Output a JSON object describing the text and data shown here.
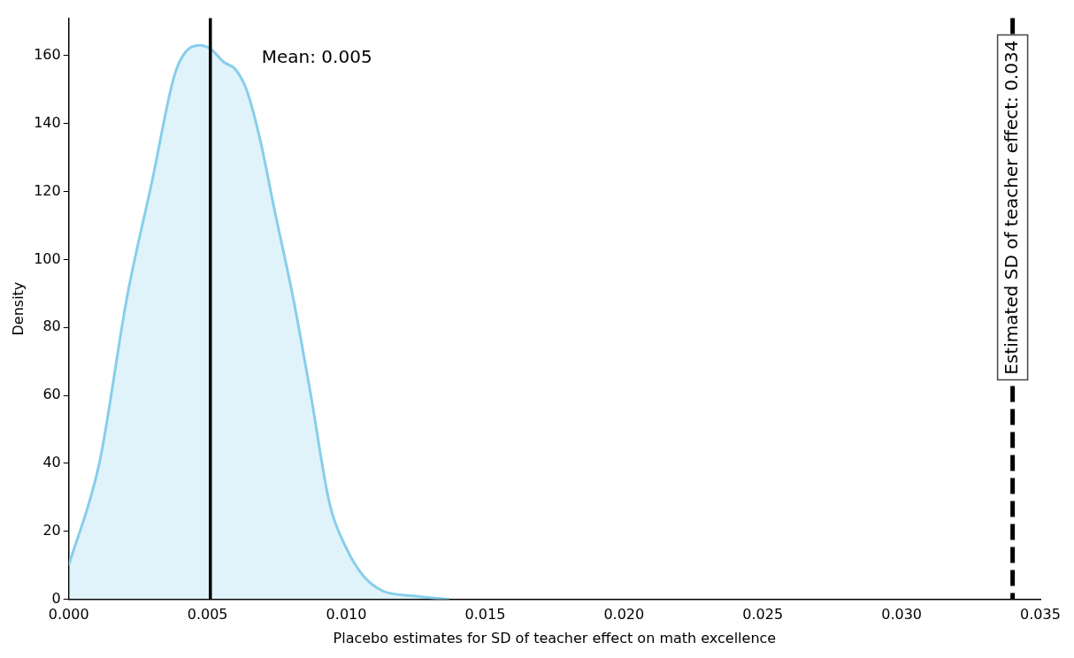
{
  "chart_data": {
    "type": "area",
    "xlabel": "Placebo estimates for SD of teacher effect on math excellence",
    "ylabel": "Density",
    "x": [
      0,
      0.0011,
      0.0021,
      0.003,
      0.0038,
      0.0042,
      0.0047,
      0.0051,
      0.0056,
      0.006,
      0.0064,
      0.0069,
      0.0074,
      0.0081,
      0.0087,
      0.0094,
      0.01,
      0.0106,
      0.0113,
      0.0124,
      0.0137
    ],
    "series": [
      {
        "color": "#87ceeb",
        "values": [
          10,
          40,
          89,
          123,
          154,
          161,
          163,
          162,
          158,
          156,
          150,
          135,
          115,
          88,
          61,
          28,
          15,
          7,
          2.5,
          1,
          0
        ]
      }
    ],
    "xlim": [
      0,
      0.035
    ],
    "xticks": [
      {
        "value": 0,
        "label": "0.000"
      },
      {
        "value": 0.005,
        "label": "0.005"
      },
      {
        "value": 0.01,
        "label": "0.010"
      },
      {
        "value": 0.015,
        "label": "0.015"
      },
      {
        "value": 0.02,
        "label": "0.020"
      },
      {
        "value": 0.025,
        "label": "0.025"
      },
      {
        "value": 0.03,
        "label": "0.030"
      },
      {
        "value": 0.035,
        "label": "0.035"
      }
    ],
    "ylim": [
      0,
      171
    ],
    "yticks": [
      0,
      20,
      40,
      60,
      80,
      100,
      120,
      140,
      160
    ],
    "ref_lines": [
      {
        "axis": "x",
        "value": 0.0051,
        "label": "Mean: 0.005",
        "color": "#000000",
        "line_style": "solid"
      },
      {
        "axis": "x",
        "value": 0.034,
        "label": "Estimated SD of teacher effect: 0.034",
        "color": "#000000",
        "line_style": "dashed"
      }
    ],
    "grid": false,
    "legend": false
  }
}
